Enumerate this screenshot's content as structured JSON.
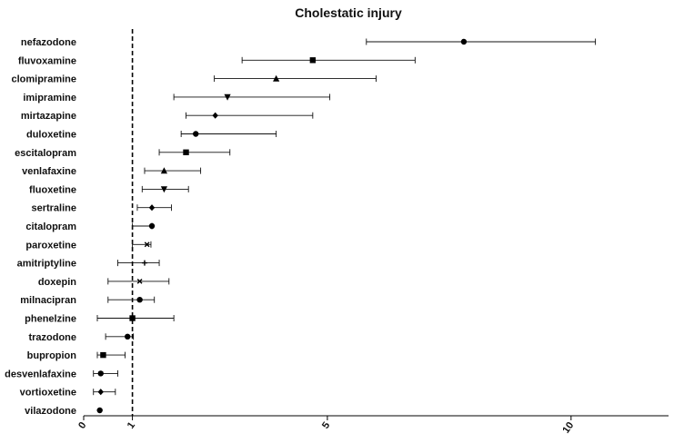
{
  "chart_data": {
    "type": "forest",
    "title": "Cholestatic injury",
    "xlabel": "",
    "ylabel": "",
    "xlim": [
      0,
      12
    ],
    "x_ticks": [
      0,
      1,
      5,
      10
    ],
    "reference_line": 1,
    "grid": false,
    "legend": "none",
    "rows": [
      {
        "name": "nefazodone",
        "estimate": 7.8,
        "lower": 5.8,
        "upper": 10.5,
        "marker": "circle"
      },
      {
        "name": "fluvoxamine",
        "estimate": 4.7,
        "lower": 3.25,
        "upper": 6.8,
        "marker": "square"
      },
      {
        "name": "clomipramine",
        "estimate": 3.95,
        "lower": 2.68,
        "upper": 6.0,
        "marker": "triangle-up"
      },
      {
        "name": "imipramine",
        "estimate": 2.95,
        "lower": 1.85,
        "upper": 5.05,
        "marker": "triangle-down"
      },
      {
        "name": "mirtazapine",
        "estimate": 2.7,
        "lower": 2.1,
        "upper": 4.7,
        "marker": "diamond"
      },
      {
        "name": "duloxetine",
        "estimate": 2.3,
        "lower": 2.0,
        "upper": 3.95,
        "marker": "circle"
      },
      {
        "name": "escitalopram",
        "estimate": 2.1,
        "lower": 1.55,
        "upper": 3.0,
        "marker": "square"
      },
      {
        "name": "venlafaxine",
        "estimate": 1.65,
        "lower": 1.25,
        "upper": 2.4,
        "marker": "triangle-up"
      },
      {
        "name": "fluoxetine",
        "estimate": 1.65,
        "lower": 1.2,
        "upper": 2.15,
        "marker": "triangle-down"
      },
      {
        "name": "sertraline",
        "estimate": 1.4,
        "lower": 1.1,
        "upper": 1.8,
        "marker": "diamond"
      },
      {
        "name": "citalopram",
        "estimate": 1.4,
        "lower": 1.0,
        "upper": 1.4,
        "marker": "circle"
      },
      {
        "name": "paroxetine",
        "estimate": 1.3,
        "lower": 1.0,
        "upper": 1.38,
        "marker": "x"
      },
      {
        "name": "amitriptyline",
        "estimate": 1.25,
        "lower": 0.7,
        "upper": 1.55,
        "marker": "plus"
      },
      {
        "name": "doxepin",
        "estimate": 1.15,
        "lower": 0.5,
        "upper": 1.75,
        "marker": "x"
      },
      {
        "name": "milnacipran",
        "estimate": 1.15,
        "lower": 0.5,
        "upper": 1.45,
        "marker": "circle"
      },
      {
        "name": "phenelzine",
        "estimate": 1.0,
        "lower": 0.28,
        "upper": 1.85,
        "marker": "square"
      },
      {
        "name": "trazodone",
        "estimate": 0.9,
        "lower": 0.45,
        "upper": 1.02,
        "marker": "circle"
      },
      {
        "name": "bupropion",
        "estimate": 0.4,
        "lower": 0.28,
        "upper": 0.85,
        "marker": "square"
      },
      {
        "name": "desvenlafaxine",
        "estimate": 0.35,
        "lower": 0.2,
        "upper": 0.7,
        "marker": "circle"
      },
      {
        "name": "vortioxetine",
        "estimate": 0.35,
        "lower": 0.2,
        "upper": 0.65,
        "marker": "diamond"
      },
      {
        "name": "vilazodone",
        "estimate": 0.33,
        "lower": 0.33,
        "upper": 0.33,
        "marker": "circle"
      }
    ]
  }
}
